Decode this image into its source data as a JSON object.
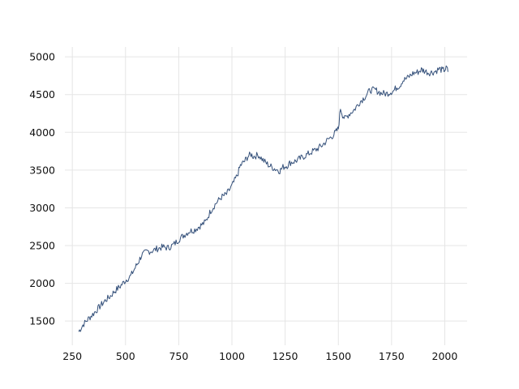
{
  "chart_data": {
    "type": "line",
    "title": "",
    "xlabel": "",
    "ylabel": "",
    "xlim": [
      215,
      2105
    ],
    "ylim": [
      1180,
      5130
    ],
    "grid": true,
    "xticks": [
      250,
      500,
      750,
      1000,
      1250,
      1500,
      1750,
      2000
    ],
    "yticks": [
      1500,
      2000,
      2500,
      3000,
      3500,
      4000,
      4500,
      5000
    ],
    "line_color": "#34507a",
    "grid_color": "#e5e5e5",
    "series": [
      {
        "x": [
          280,
          300,
          325,
          350,
          375,
          400,
          425,
          450,
          475,
          500,
          525,
          550,
          560,
          575,
          600,
          625,
          650,
          675,
          700,
          725,
          750,
          775,
          800,
          825,
          850,
          875,
          900,
          925,
          950,
          975,
          1000,
          1025,
          1040,
          1060,
          1075,
          1090,
          1100,
          1125,
          1150,
          1175,
          1200,
          1225,
          1240,
          1260,
          1275,
          1300,
          1325,
          1350,
          1375,
          1400,
          1425,
          1450,
          1475,
          1490,
          1500,
          1510,
          1520,
          1530,
          1550,
          1575,
          1600,
          1625,
          1650,
          1675,
          1700,
          1725,
          1750,
          1760,
          1775,
          1790,
          1800,
          1825,
          1850,
          1875,
          1890,
          1900,
          1925,
          1950,
          1975,
          1990,
          2000,
          2010,
          2015
        ],
        "y": [
          1360,
          1450,
          1530,
          1600,
          1680,
          1760,
          1820,
          1900,
          1960,
          2040,
          2100,
          2230,
          2280,
          2370,
          2420,
          2430,
          2460,
          2480,
          2470,
          2510,
          2580,
          2640,
          2690,
          2710,
          2760,
          2810,
          2960,
          3060,
          3140,
          3180,
          3290,
          3430,
          3560,
          3620,
          3680,
          3710,
          3680,
          3700,
          3620,
          3560,
          3520,
          3490,
          3540,
          3560,
          3600,
          3620,
          3660,
          3700,
          3740,
          3780,
          3830,
          3900,
          3960,
          4010,
          4050,
          4320,
          4230,
          4180,
          4240,
          4300,
          4400,
          4470,
          4560,
          4560,
          4520,
          4510,
          4540,
          4550,
          4600,
          4620,
          4680,
          4720,
          4780,
          4800,
          4830,
          4820,
          4790,
          4800,
          4840,
          4820,
          4830,
          4850,
          4800
        ]
      }
    ]
  }
}
